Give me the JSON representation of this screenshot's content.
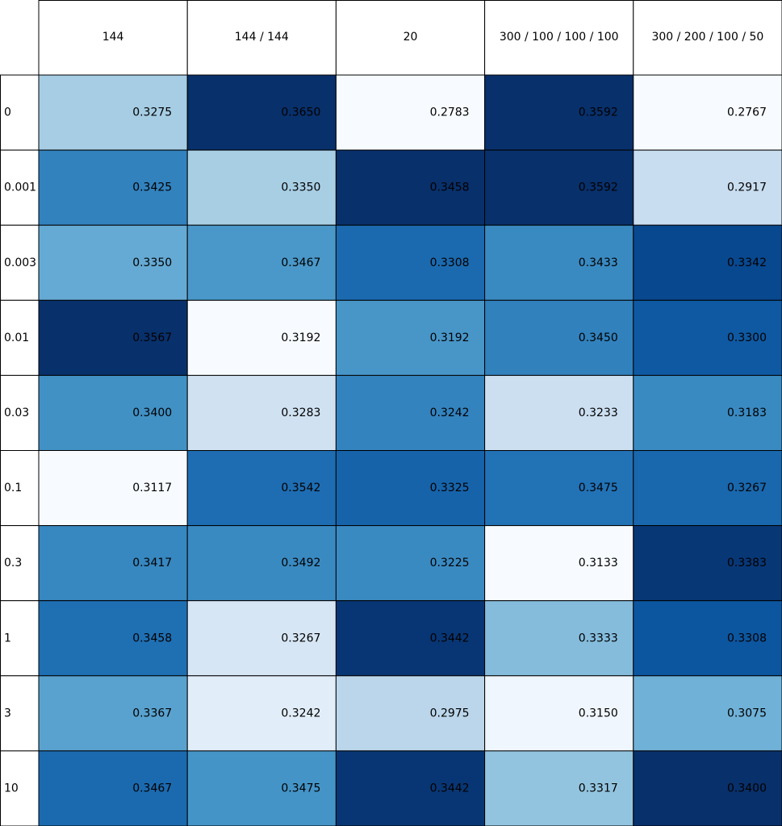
{
  "chart_data": {
    "type": "heatmap",
    "title": "",
    "xlabel": "",
    "ylabel": "",
    "columns": [
      "144",
      "144 / 144",
      "20",
      "300 / 100 / 100 / 100",
      "300 / 200 / 100 / 50"
    ],
    "rows": [
      "0",
      "0.001",
      "0.003",
      "0.01",
      "0.03",
      "0.1",
      "0.3",
      "1",
      "3",
      "10"
    ],
    "values": [
      [
        "0.3275",
        "0.3650",
        "0.2783",
        "0.3592",
        "0.2767"
      ],
      [
        "0.3425",
        "0.3350",
        "0.3458",
        "0.3592",
        "0.2917"
      ],
      [
        "0.3350",
        "0.3467",
        "0.3308",
        "0.3433",
        "0.3342"
      ],
      [
        "0.3567",
        "0.3192",
        "0.3192",
        "0.3450",
        "0.3300"
      ],
      [
        "0.3400",
        "0.3283",
        "0.3242",
        "0.3233",
        "0.3183"
      ],
      [
        "0.3117",
        "0.3542",
        "0.3325",
        "0.3475",
        "0.3267"
      ],
      [
        "0.3417",
        "0.3492",
        "0.3225",
        "0.3133",
        "0.3383"
      ],
      [
        "0.3458",
        "0.3267",
        "0.3442",
        "0.3333",
        "0.3308"
      ],
      [
        "0.3367",
        "0.3242",
        "0.2975",
        "0.3150",
        "0.3075"
      ],
      [
        "0.3467",
        "0.3475",
        "0.3442",
        "0.3317",
        "0.3400"
      ]
    ],
    "colormap": "Blues",
    "colors": {
      "grid_line": "#000000",
      "header_background": "#ffffff",
      "text": "#000000"
    }
  }
}
